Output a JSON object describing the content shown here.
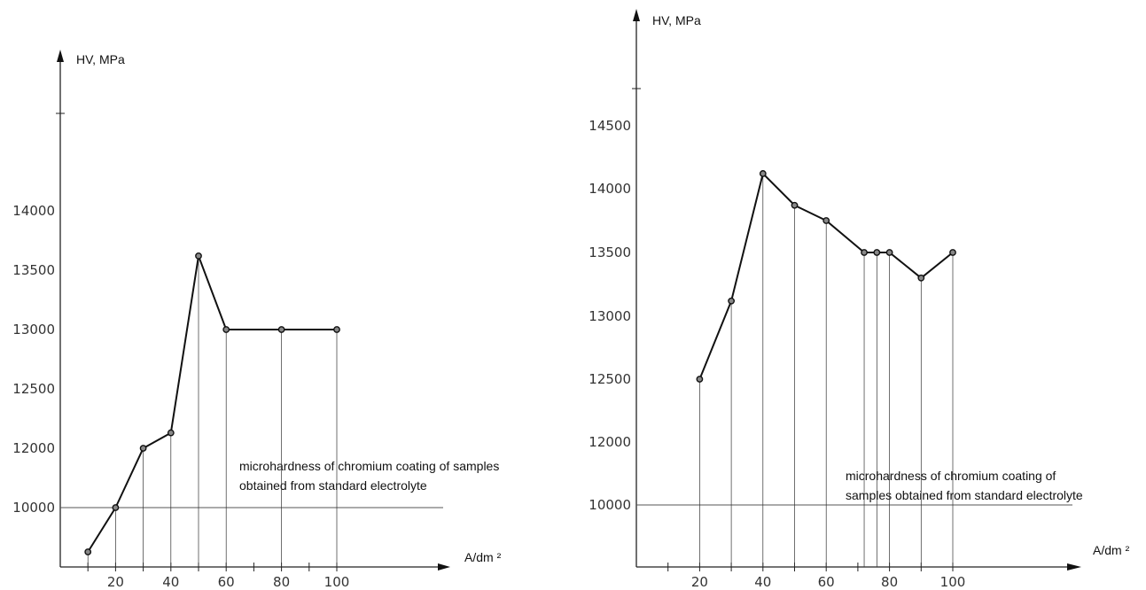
{
  "chart_data": [
    {
      "type": "line",
      "ylabel": "HV, MPa",
      "xlabel": "A/dm ²",
      "x_ticks": [
        20,
        40,
        60,
        80,
        100
      ],
      "y_ticks": [
        "10000",
        "12000",
        "12500",
        "13000",
        "13500",
        "14000"
      ],
      "x": [
        10,
        20,
        30,
        40,
        50,
        60,
        80,
        100
      ],
      "values": [
        9650,
        10000,
        12000,
        12130,
        13620,
        13000,
        13000,
        13000
      ],
      "reference_line": 10000,
      "annotation": [
        "microhardness of chromium coating of samples",
        "obtained from standard electrolyte"
      ]
    },
    {
      "type": "line",
      "ylabel": "HV, MPa",
      "xlabel": "A/dm ²",
      "x_ticks": [
        20,
        40,
        60,
        80,
        100
      ],
      "y_ticks": [
        "10000",
        "12000",
        "12500",
        "13000",
        "13500",
        "14000",
        "14500"
      ],
      "x": [
        20,
        30,
        40,
        50,
        60,
        72,
        76,
        80,
        90,
        100
      ],
      "values": [
        12500,
        13120,
        14120,
        13870,
        13750,
        13500,
        13500,
        13500,
        13300,
        13500
      ],
      "reference_line": 10000,
      "annotation": [
        "microhardness of chromium coating of",
        "samples obtained from standard electrolyte"
      ]
    }
  ]
}
